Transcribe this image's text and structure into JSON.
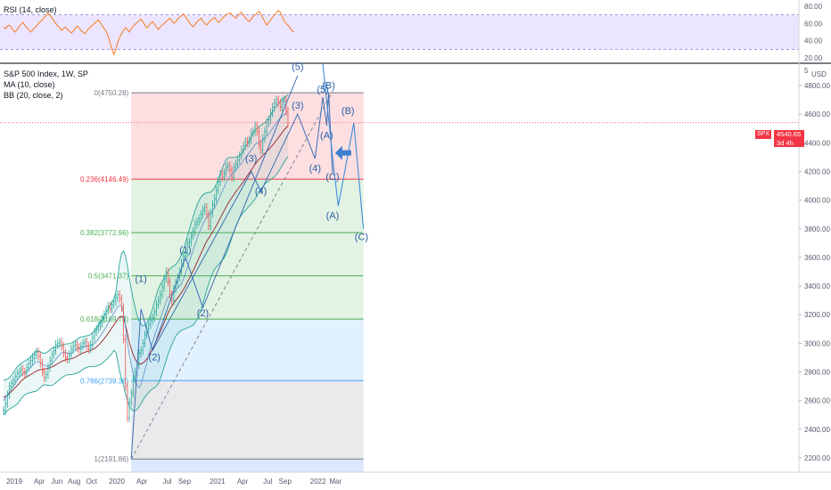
{
  "rsi": {
    "label": "RSI (14, close)",
    "ticks": [
      80,
      60,
      40,
      20
    ],
    "levels": [
      70,
      30
    ],
    "values": [
      56,
      54,
      57,
      58,
      55,
      52,
      50,
      53,
      56,
      59,
      61,
      58,
      55,
      53,
      50,
      52,
      55,
      57,
      60,
      62,
      64,
      67,
      69,
      72,
      70,
      66,
      63,
      60,
      57,
      55,
      52,
      54,
      56,
      53,
      51,
      49,
      51,
      54,
      57,
      55,
      52,
      50,
      48,
      51,
      54,
      56,
      58,
      60,
      62,
      64,
      61,
      57,
      54,
      51,
      46,
      38,
      30,
      24,
      30,
      38,
      44,
      48,
      52,
      55,
      53,
      50,
      54,
      57,
      59,
      61,
      63,
      65,
      62,
      58,
      55,
      57,
      60,
      62,
      59,
      56,
      53,
      56,
      58,
      60,
      62,
      64,
      66,
      63,
      60,
      62,
      65,
      67,
      69,
      71,
      68,
      64,
      61,
      58,
      56,
      59,
      62,
      64,
      66,
      63,
      60,
      58,
      61,
      63,
      65,
      67,
      64,
      61,
      63,
      66,
      68,
      70,
      71,
      72,
      70,
      68,
      66,
      69,
      71,
      73,
      70,
      66,
      64,
      62,
      65,
      68,
      70,
      72,
      74,
      71,
      66,
      62,
      58,
      61,
      64,
      67,
      70,
      72,
      75,
      73,
      68,
      63,
      60,
      58,
      55,
      52,
      50
    ]
  },
  "main": {
    "title": "S&P 500 Index, 1W, SP",
    "ma_label": "MA (10, close)",
    "bb_label": "BB (20, close, 2)",
    "price_ticks": [
      4800,
      4600,
      4400,
      4200,
      4000,
      3800,
      3600,
      3400,
      3200,
      3000,
      2800,
      2600,
      2400,
      2200
    ],
    "top_tick": "5",
    "currency": "USD",
    "last_price": {
      "symbol": "SPX",
      "value": "4540.65",
      "countdown": "3d 4h"
    }
  },
  "x_axis": {
    "labels": [
      "2019",
      "Apr",
      "Jun",
      "Aug",
      "Oct",
      "2020",
      "Apr",
      "Jul",
      "Sep",
      "2021",
      "Apr",
      "Jul",
      "Sep",
      "2022",
      "Mar"
    ]
  },
  "chart_data": {
    "type": "line",
    "symbol": "S&P 500 Index",
    "interval": "1W",
    "ylim": [
      2100,
      4950
    ],
    "fib_levels": [
      {
        "ratio_label": "0",
        "price": 4750.28,
        "color": "#787b86"
      },
      {
        "ratio_label": "0.236",
        "price": 4146.49,
        "color": "#f23645"
      },
      {
        "ratio_label": "0.382",
        "price": 3772.96,
        "color": "#4caf50"
      },
      {
        "ratio_label": "0.5",
        "price": 3471.37,
        "color": "#4caf50"
      },
      {
        "ratio_label": "0.618",
        "price": 3169.78,
        "color": "#4caf50"
      },
      {
        "ratio_label": "0.786",
        "price": 2739.36,
        "color": "#42a5f5"
      },
      {
        "ratio_label": "1",
        "price": 2191.86,
        "color": "#787b86"
      }
    ],
    "fib_zone_colors": [
      "#f23645",
      "#4caf50",
      "#4caf50",
      "#4caf50",
      "#42a5f5",
      "#787b86",
      "#2962ff"
    ],
    "close": [
      2530,
      2580,
      2640,
      2700,
      2720,
      2740,
      2770,
      2790,
      2800,
      2820,
      2800,
      2790,
      2830,
      2860,
      2880,
      2900,
      2920,
      2940,
      2910,
      2860,
      2800,
      2760,
      2780,
      2830,
      2880,
      2920,
      2950,
      2990,
      3000,
      3010,
      2980,
      2930,
      2900,
      2890,
      2920,
      2960,
      2980,
      2990,
      2970,
      2960,
      2980,
      3000,
      3010,
      2980,
      2960,
      2990,
      3040,
      3080,
      3100,
      3120,
      3140,
      3170,
      3200,
      3230,
      3260,
      3240,
      3270,
      3290,
      3320,
      3340,
      3310,
      3250,
      3030,
      2700,
      2480,
      2590,
      2650,
      2750,
      2800,
      2850,
      2930,
      2950,
      3000,
      3060,
      3100,
      3130,
      3160,
      3180,
      3220,
      3270,
      3300,
      3340,
      3390,
      3450,
      3500,
      3430,
      3340,
      3300,
      3380,
      3420,
      3460,
      3500,
      3560,
      3610,
      3630,
      3700,
      3710,
      3750,
      3780,
      3830,
      3850,
      3870,
      3900,
      3930,
      3950,
      3900,
      3820,
      3910,
      3970,
      4010,
      4070,
      4130,
      4180,
      4160,
      4190,
      4230,
      4240,
      4210,
      4160,
      4230,
      4250,
      4280,
      4310,
      4350,
      4380,
      4410,
      4400,
      4420,
      4470,
      4480,
      4520,
      4480,
      4390,
      4350,
      4430,
      4480,
      4540,
      4560,
      4610,
      4650,
      4680,
      4700,
      4680,
      4650,
      4690,
      4700,
      4620,
      4540
    ],
    "ma10": [
      2600,
      2620,
      2640,
      2660,
      2680,
      2700,
      2720,
      2740,
      2760,
      2775,
      2785,
      2795,
      2805,
      2815,
      2830,
      2845,
      2860,
      2870,
      2872,
      2865,
      2855,
      2848,
      2842,
      2840,
      2845,
      2858,
      2872,
      2888,
      2905,
      2920,
      2935,
      2940,
      2938,
      2932,
      2928,
      2930,
      2940,
      2952,
      2962,
      2968,
      2970,
      2972,
      2976,
      2980,
      2982,
      2984,
      2990,
      3000,
      3015,
      3032,
      3050,
      3070,
      3092,
      3115,
      3140,
      3165,
      3188,
      3210,
      3232,
      3255,
      3265,
      3262,
      3215,
      3120,
      3010,
      2920,
      2850,
      2790,
      2745,
      2710,
      2690,
      2710,
      2760,
      2810,
      2860,
      2920,
      2970,
      3010,
      3050,
      3090,
      3130,
      3170,
      3210,
      3250,
      3290,
      3320,
      3335,
      3345,
      3355,
      3370,
      3385,
      3400,
      3420,
      3450,
      3490,
      3530,
      3570,
      3610,
      3650,
      3690,
      3730,
      3770,
      3800,
      3830,
      3860,
      3880,
      3895,
      3910,
      3925,
      3945,
      3970,
      4000,
      4030,
      4060,
      4090,
      4120,
      4145,
      4165,
      4180,
      4195,
      4210,
      4225,
      4240,
      4258,
      4276,
      4296,
      4314,
      4332,
      4350,
      4368,
      4388,
      4400,
      4405,
      4410,
      4420,
      4432,
      4446,
      4462,
      4480,
      4500,
      4520,
      4540,
      4558,
      4572,
      4585,
      4598,
      4605,
      4608
    ],
    "ma20": [
      2620,
      2630,
      2640,
      2650,
      2662,
      2675,
      2690,
      2705,
      2720,
      2735,
      2748,
      2758,
      2766,
      2774,
      2782,
      2790,
      2798,
      2806,
      2812,
      2816,
      2818,
      2820,
      2822,
      2825,
      2830,
      2836,
      2842,
      2850,
      2858,
      2866,
      2874,
      2880,
      2885,
      2888,
      2890,
      2892,
      2896,
      2902,
      2910,
      2918,
      2926,
      2932,
      2938,
      2942,
      2946,
      2950,
      2956,
      2964,
      2974,
      2986,
      3000,
      3016,
      3032,
      3050,
      3068,
      3088,
      3108,
      3128,
      3148,
      3168,
      3182,
      3190,
      3175,
      3130,
      3070,
      3010,
      2960,
      2920,
      2890,
      2868,
      2856,
      2856,
      2862,
      2874,
      2890,
      2912,
      2936,
      2962,
      2990,
      3020,
      3050,
      3080,
      3112,
      3146,
      3180,
      3212,
      3240,
      3262,
      3282,
      3300,
      3318,
      3336,
      3356,
      3378,
      3402,
      3428,
      3454,
      3480,
      3508,
      3536,
      3566,
      3596,
      3626,
      3656,
      3686,
      3712,
      3734,
      3756,
      3778,
      3800,
      3824,
      3848,
      3874,
      3900,
      3926,
      3952,
      3976,
      3998,
      4018,
      4038,
      4058,
      4076,
      4094,
      4112,
      4130,
      4150,
      4170,
      4190,
      4210,
      4230,
      4250,
      4268,
      4284,
      4298,
      4312,
      4326,
      4340,
      4354,
      4368,
      4384,
      4400,
      4418,
      4436,
      4454,
      4472,
      4490,
      4506,
      4520
    ],
    "bb_half_width": [
      120,
      115,
      110,
      110,
      112,
      118,
      125,
      130,
      128,
      125,
      120,
      118,
      118,
      120,
      125,
      130,
      135,
      140,
      135,
      125,
      115,
      110,
      112,
      118,
      125,
      130,
      128,
      125,
      120,
      118,
      115,
      112,
      110,
      108,
      108,
      110,
      112,
      115,
      118,
      120,
      118,
      115,
      112,
      110,
      110,
      112,
      118,
      125,
      132,
      140,
      148,
      155,
      160,
      165,
      170,
      175,
      180,
      178,
      210,
      290,
      380,
      440,
      470,
      480,
      470,
      450,
      420,
      390,
      360,
      330,
      300,
      280,
      260,
      250,
      250,
      255,
      265,
      280,
      300,
      320,
      330,
      330,
      320,
      310,
      300,
      290,
      280,
      270,
      260,
      250,
      250,
      255,
      265,
      280,
      300,
      320,
      340,
      360,
      380,
      390,
      400,
      400,
      395,
      380,
      360,
      340,
      320,
      300,
      290,
      285,
      290,
      300,
      310,
      320,
      330,
      330,
      320,
      300,
      280,
      260,
      240,
      230,
      220,
      215,
      215,
      220,
      225,
      230,
      235,
      240,
      240,
      235,
      230,
      225,
      220,
      215,
      215,
      220,
      225,
      230,
      235,
      240,
      240,
      235,
      230,
      225,
      220,
      218
    ],
    "elliott_labels": [
      {
        "text": "(1)",
        "week": 71,
        "price": 3430
      },
      {
        "text": "(2)",
        "week": 78,
        "price": 2880
      },
      {
        "text": "(1)",
        "week": 94,
        "price": 3630
      },
      {
        "text": "(2)",
        "week": 103,
        "price": 3190
      },
      {
        "text": "(3)",
        "week": 128,
        "price": 4270
      },
      {
        "text": "(4)",
        "week": 133,
        "price": 4040
      },
      {
        "text": "(5)",
        "week": 152,
        "price": 4910
      },
      {
        "text": "(3)",
        "week": 152,
        "price": 4640
      },
      {
        "text": "(4)",
        "week": 161,
        "price": 4200
      },
      {
        "text": "(5)",
        "week": 165,
        "price": 4750
      },
      {
        "text": "(B)",
        "week": 168,
        "price": 4780
      },
      {
        "text": "(A)",
        "week": 167,
        "price": 4430
      },
      {
        "text": "(C)",
        "week": 170,
        "price": 4140
      },
      {
        "text": "(A)",
        "week": 170,
        "price": 3870
      },
      {
        "text": "(B)",
        "week": 178,
        "price": 4600
      },
      {
        "text": "(C)",
        "week": 185,
        "price": 3720
      }
    ],
    "projection": [
      {
        "week": 165,
        "price": 4950
      },
      {
        "week": 171,
        "price": 4180
      },
      {
        "week": 173,
        "price": 3960
      },
      {
        "week": 181,
        "price": 4540
      },
      {
        "week": 186,
        "price": 3800
      }
    ],
    "first_wave_path": [
      {
        "week": 66,
        "price": 2191
      },
      {
        "week": 71,
        "price": 3240
      },
      {
        "week": 77,
        "price": 2950
      },
      {
        "week": 94,
        "price": 3600
      },
      {
        "week": 103,
        "price": 3250
      },
      {
        "week": 152,
        "price": 4870
      }
    ],
    "second_wave_path": [
      {
        "week": 77,
        "price": 2950
      },
      {
        "week": 128,
        "price": 4200
      },
      {
        "week": 133,
        "price": 4060
      },
      {
        "week": 152,
        "price": 4600
      },
      {
        "week": 161,
        "price": 4290
      },
      {
        "week": 165,
        "price": 4720
      },
      {
        "week": 167,
        "price": 4520
      },
      {
        "week": 168,
        "price": 4750
      },
      {
        "week": 170,
        "price": 4190
      }
    ],
    "trendline": [
      {
        "week": 66,
        "price": 2191
      },
      {
        "week": 170,
        "price": 4760
      }
    ]
  }
}
